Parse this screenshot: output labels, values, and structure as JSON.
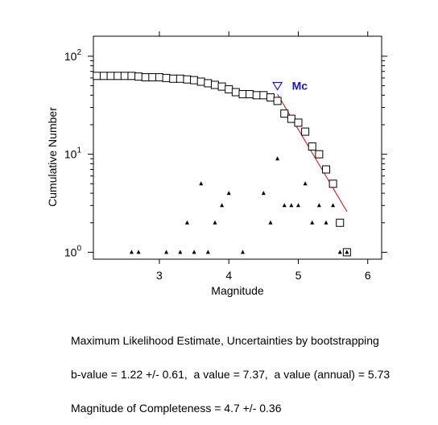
{
  "chart_data": {
    "type": "scatter",
    "xlabel": "Magnitude",
    "ylabel": "Cumulative Number",
    "xlim": [
      2.05,
      6.2
    ],
    "ylim": [
      0.85,
      160
    ],
    "yscale": "log",
    "x_ticks": [
      3,
      4,
      5,
      6
    ],
    "y_ticks": [
      {
        "value": 1,
        "base": "10",
        "exp": "0"
      },
      {
        "value": 10,
        "base": "10",
        "exp": "1"
      },
      {
        "value": 100,
        "base": "10",
        "exp": "2"
      }
    ],
    "grid": false,
    "series": [
      {
        "marker": "square",
        "points": [
          [
            2.1,
            63
          ],
          [
            2.2,
            63
          ],
          [
            2.3,
            63
          ],
          [
            2.4,
            63
          ],
          [
            2.5,
            63
          ],
          [
            2.6,
            63
          ],
          [
            2.7,
            62
          ],
          [
            2.8,
            61
          ],
          [
            2.9,
            61
          ],
          [
            3.0,
            61
          ],
          [
            3.1,
            60
          ],
          [
            3.2,
            59
          ],
          [
            3.3,
            59
          ],
          [
            3.4,
            58
          ],
          [
            3.5,
            57
          ],
          [
            3.6,
            55
          ],
          [
            3.7,
            53
          ],
          [
            3.8,
            51
          ],
          [
            3.9,
            49
          ],
          [
            4.0,
            46
          ],
          [
            4.1,
            43
          ],
          [
            4.2,
            41
          ],
          [
            4.3,
            41
          ],
          [
            4.4,
            40
          ],
          [
            4.5,
            40
          ],
          [
            4.6,
            38
          ],
          [
            4.7,
            35
          ],
          [
            4.8,
            26
          ],
          [
            4.9,
            23
          ],
          [
            5.0,
            21
          ],
          [
            5.1,
            17
          ],
          [
            5.2,
            12
          ],
          [
            5.3,
            10
          ],
          [
            5.4,
            7
          ],
          [
            5.5,
            5
          ],
          [
            5.6,
            2
          ],
          [
            5.7,
            1
          ]
        ]
      },
      {
        "marker": "triangle",
        "points": [
          [
            2.6,
            1
          ],
          [
            2.7,
            1
          ],
          [
            3.1,
            1
          ],
          [
            3.3,
            1
          ],
          [
            3.4,
            2
          ],
          [
            3.5,
            1
          ],
          [
            3.6,
            5
          ],
          [
            3.7,
            1
          ],
          [
            3.8,
            2
          ],
          [
            3.9,
            3
          ],
          [
            4.0,
            4
          ],
          [
            4.2,
            1
          ],
          [
            4.5,
            4
          ],
          [
            4.6,
            2
          ],
          [
            4.7,
            9
          ],
          [
            4.8,
            3
          ],
          [
            4.9,
            3
          ],
          [
            5.0,
            3
          ],
          [
            5.1,
            5
          ],
          [
            5.2,
            2
          ],
          [
            5.3,
            3
          ],
          [
            5.4,
            2
          ],
          [
            5.5,
            3
          ],
          [
            5.6,
            1
          ],
          [
            5.7,
            1
          ]
        ]
      }
    ],
    "fit_line": {
      "color": "#e00000",
      "from": [
        4.7,
        41
      ],
      "to": [
        5.7,
        2.6
      ]
    },
    "mc_marker": {
      "x": 4.7,
      "y": 50,
      "label": "Mc",
      "color": "#1a1aa6"
    }
  },
  "caption": {
    "line1": "Maximum Likelihood Estimate, Uncertainties by bootstrapping",
    "line2": "b-value = 1.22 +/- 0.61,  a value = 7.37,  a value (annual) = 5.73",
    "line3": "Magnitude of Completeness = 4.7 +/- 0.36"
  }
}
